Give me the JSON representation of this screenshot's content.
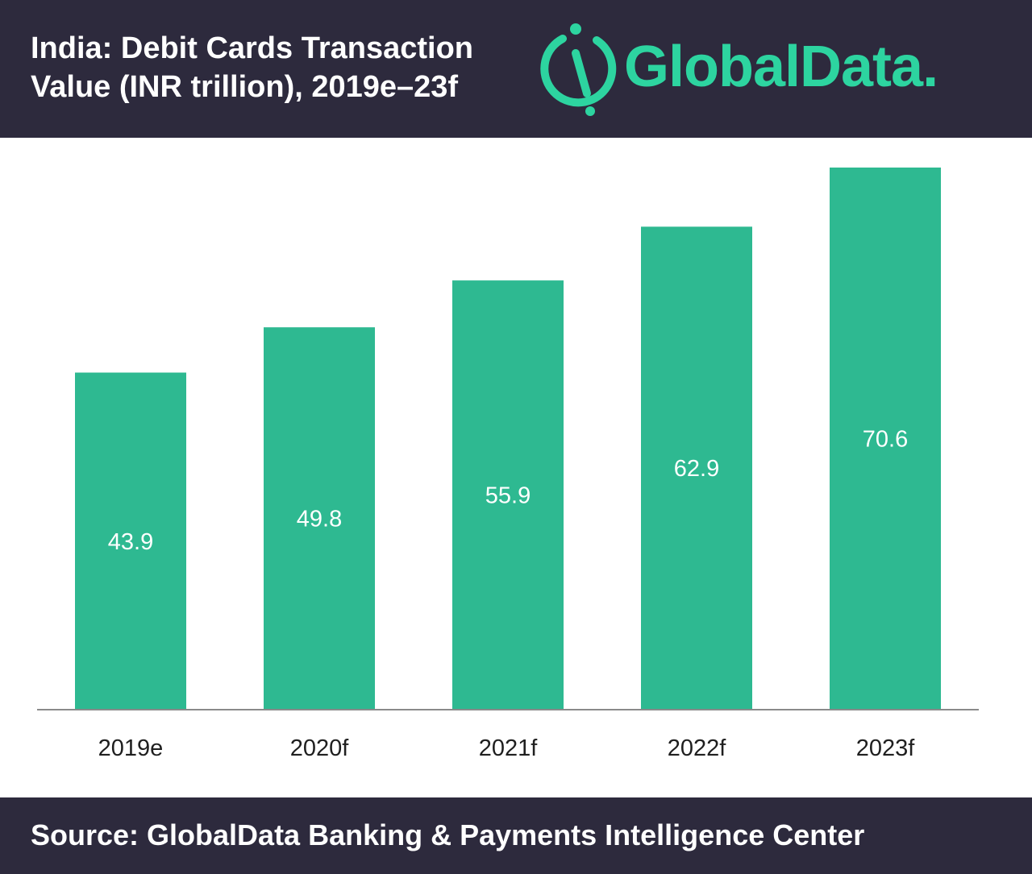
{
  "header": {
    "title_line1": "India: Debit Cards Transaction",
    "title_line2": "Value (INR trillion), 2019e–23f",
    "brand": "GlobalData.",
    "brand_icon": "globaldata-logo-icon",
    "brand_color": "#2dd4a0",
    "background_color": "#2d2a3d"
  },
  "footer": {
    "source": "Source: GlobalData Banking & Payments Intelligence Center"
  },
  "chart_data": {
    "type": "bar",
    "title": "India: Debit Cards Transaction Value (INR trillion), 2019e–23f",
    "categories": [
      "2019e",
      "2020f",
      "2021f",
      "2022f",
      "2023f"
    ],
    "values": [
      43.9,
      49.8,
      55.9,
      62.9,
      70.6
    ],
    "value_labels": [
      "43.9",
      "49.8",
      "55.9",
      "62.9",
      "70.6"
    ],
    "bar_color": "#2eb991",
    "ylim": [
      0,
      70.6
    ],
    "grid": false,
    "legend": "none"
  }
}
